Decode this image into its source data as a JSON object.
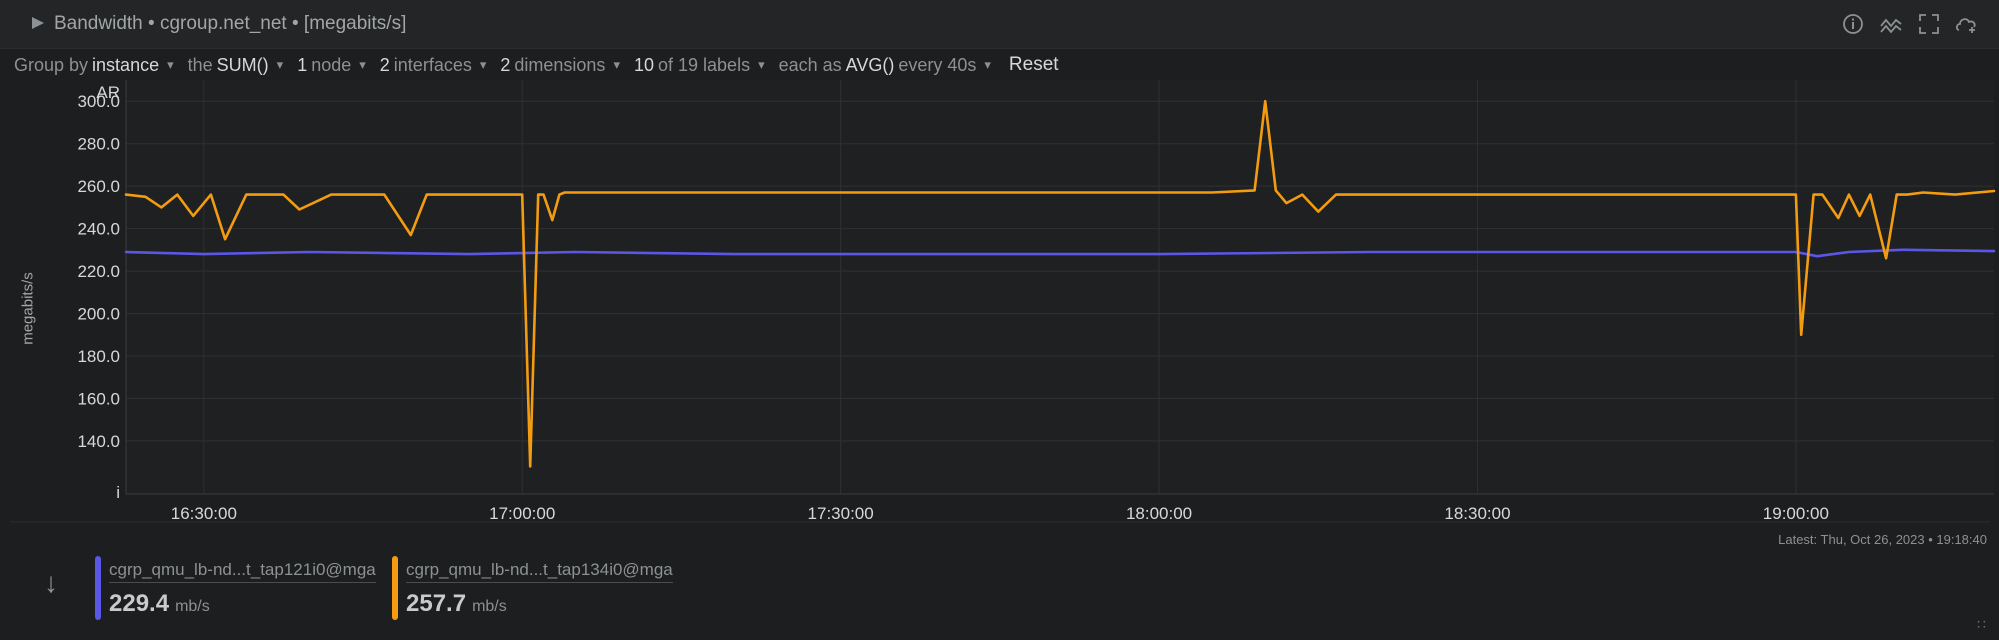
{
  "window": {
    "title": "Bandwidth • cgroup.net_net • [megabits/s]",
    "icons": [
      "info-icon",
      "correlate-icon",
      "fullscreen-icon",
      "dashboard-add-icon"
    ]
  },
  "controls": {
    "group_by_label": "Group by",
    "group_by_value": "instance",
    "agg_label": "the",
    "agg_value": "SUM()",
    "nodes_count": "1",
    "nodes_label": "node",
    "interfaces_count": "2",
    "interfaces_label": "interfaces",
    "dimensions_count": "2",
    "dimensions_label": "dimensions",
    "labels_count": "10",
    "labels_label": "of 19 labels",
    "each_label": "each as",
    "each_value": "AVG()",
    "every_label": "every 40s",
    "reset_label": "Reset"
  },
  "chart_data": {
    "type": "line",
    "title": "Bandwidth • cgroup.net_net • [megabits/s]",
    "ylabel": "megabits/s",
    "y_top_label": "AR",
    "y_bottom_label": "i",
    "ylim": [
      115,
      310
    ],
    "yticks": [
      "300.0",
      "280.0",
      "260.0",
      "240.0",
      "220.0",
      "200.0",
      "180.0",
      "160.0",
      "140.0"
    ],
    "ytick_values": [
      300,
      280,
      260,
      240,
      220,
      200,
      180,
      160,
      140
    ],
    "xlim": [
      "16:22:40",
      "19:18:40"
    ],
    "xticks": [
      "16:30:00",
      "17:00:00",
      "17:30:00",
      "18:00:00",
      "18:30:00",
      "19:00:00"
    ],
    "grid": true,
    "legend_position": "bottom",
    "series": [
      {
        "name": "cgrp_qmu_lb-nd...t_tap121i0@mga",
        "color": "#5b57e6",
        "x": [
          "16:22:40",
          "16:30:00",
          "16:40:00",
          "16:55:00",
          "17:05:00",
          "17:20:00",
          "17:40:00",
          "18:00:00",
          "18:20:00",
          "18:40:00",
          "18:55:00",
          "19:00:00",
          "19:02:00",
          "19:05:00",
          "19:10:00",
          "19:18:40"
        ],
        "values": [
          229,
          228,
          229,
          228,
          229,
          228,
          228,
          228,
          229,
          229,
          229,
          229,
          227,
          229,
          230,
          229.4
        ]
      },
      {
        "name": "cgrp_qmu_lb-nd...t_tap134i0@mga",
        "color": "#f39c12",
        "x": [
          "16:22:40",
          "16:24:30",
          "16:26:00",
          "16:27:30",
          "16:29:00",
          "16:30:40",
          "16:32:00",
          "16:34:00",
          "16:37:30",
          "16:39:00",
          "16:42:00",
          "16:47:00",
          "16:49:30",
          "16:51:00",
          "16:54:00",
          "16:56:00",
          "17:00:00",
          "17:00:45",
          "17:01:30",
          "17:02:00",
          "17:02:50",
          "17:03:30",
          "17:04:00",
          "17:05:00",
          "17:10:00",
          "17:30:00",
          "17:50:00",
          "18:00:00",
          "18:05:00",
          "18:09:00",
          "18:10:00",
          "18:11:00",
          "18:12:00",
          "18:13:30",
          "18:15:00",
          "18:16:40",
          "18:18:00",
          "18:20:00",
          "18:25:00",
          "18:30:00",
          "18:40:00",
          "18:50:00",
          "19:00:00",
          "19:00:30",
          "19:01:40",
          "19:02:30",
          "19:04:00",
          "19:05:00",
          "19:06:00",
          "19:07:00",
          "19:08:30",
          "19:09:30",
          "19:10:30",
          "19:12:00",
          "19:15:00",
          "19:18:40"
        ],
        "values": [
          256,
          255,
          250,
          256,
          246,
          256,
          235,
          256,
          256,
          249,
          256,
          256,
          237,
          256,
          256,
          256,
          256,
          128,
          256,
          256,
          244,
          256,
          257,
          257,
          257,
          257,
          257,
          257,
          257,
          258,
          300,
          258,
          252,
          256,
          248,
          256,
          256,
          256,
          256,
          256,
          256,
          256,
          256,
          190,
          256,
          256,
          245,
          256,
          246,
          256,
          226,
          256,
          256,
          257,
          256,
          257.7
        ]
      }
    ]
  },
  "latest": {
    "label": "Latest:",
    "value": "Thu, Oct 26, 2023 • 19:18:40"
  },
  "legend": [
    {
      "name": "cgrp_qmu_lb-nd...t_tap121i0@mga",
      "value": "229.4",
      "unit": "mb/s",
      "color": "#5b57e6"
    },
    {
      "name": "cgrp_qmu_lb-nd...t_tap134i0@mga",
      "value": "257.7",
      "unit": "mb/s",
      "color": "#f39c12"
    }
  ]
}
